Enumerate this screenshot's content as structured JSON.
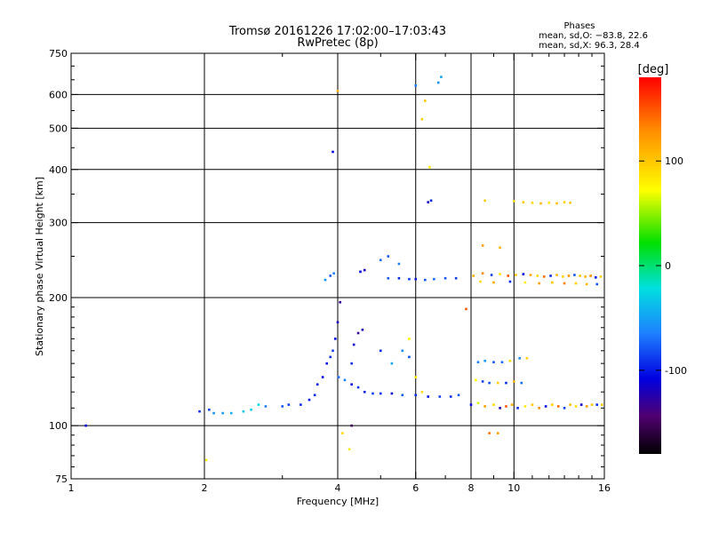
{
  "header": {
    "title_line1": "Tromsø 20161226 17:02:00–17:03:43",
    "title_line2": "RwPretec (8p)",
    "phases_heading": "Phases",
    "phases_o": "mean, sd,O: −83.8, 22.6",
    "phases_x": "mean, sd,X:  96.3, 28.4"
  },
  "colorbar": {
    "unit_label": "[deg]",
    "ticks": [
      {
        "value": 100,
        "label": "100"
      },
      {
        "value": 0,
        "label": "0"
      },
      {
        "value": -100,
        "label": "-100"
      }
    ],
    "range": [
      -180,
      180
    ]
  },
  "chart_data": {
    "type": "scatter",
    "xlabel": "Frequency [MHz]",
    "ylabel": "Stationary phase Virtual Height [km]",
    "x_scale": "log",
    "y_scale": "log",
    "xlim": [
      1,
      16
    ],
    "ylim": [
      75,
      750
    ],
    "grid": true,
    "x_ticks": [
      {
        "value": 1,
        "label": "1"
      },
      {
        "value": 2,
        "label": "2"
      },
      {
        "value": 4,
        "label": "4"
      },
      {
        "value": 6,
        "label": "6"
      },
      {
        "value": 8,
        "label": "8"
      },
      {
        "value": 10,
        "label": "10"
      },
      {
        "value": 16,
        "label": "16"
      }
    ],
    "y_ticks": [
      {
        "value": 75,
        "label": "75"
      },
      {
        "value": 100,
        "label": "100"
      },
      {
        "value": 200,
        "label": "200"
      },
      {
        "value": 300,
        "label": "300"
      },
      {
        "value": 400,
        "label": "400"
      },
      {
        "value": 500,
        "label": "500"
      },
      {
        "value": 600,
        "label": "600"
      },
      {
        "value": 750,
        "label": "750"
      }
    ],
    "x_grid": [
      2,
      4,
      6,
      8,
      10
    ],
    "y_grid": [
      100,
      200,
      300,
      400,
      500,
      600
    ],
    "series": [
      {
        "points": [
          [
            1.08,
            100,
            -110
          ],
          [
            1.95,
            108,
            -100
          ],
          [
            2.05,
            109,
            -95
          ],
          [
            2.1,
            107,
            -70
          ],
          [
            2.2,
            107,
            -65
          ],
          [
            2.3,
            107,
            -55
          ],
          [
            2.45,
            108,
            -45
          ],
          [
            2.55,
            109,
            -40
          ],
          [
            2.65,
            112,
            -35
          ],
          [
            2.75,
            111,
            -80
          ],
          [
            3.0,
            111,
            -90
          ],
          [
            3.1,
            112,
            -95
          ],
          [
            3.3,
            112,
            -100
          ],
          [
            3.45,
            115,
            -105
          ],
          [
            3.55,
            118,
            -100
          ],
          [
            3.6,
            125,
            -105
          ],
          [
            3.7,
            130,
            -110
          ],
          [
            3.78,
            140,
            -108
          ],
          [
            3.85,
            145,
            -100
          ],
          [
            3.9,
            150,
            -95
          ],
          [
            3.95,
            160,
            -110
          ],
          [
            4.0,
            175,
            -120
          ],
          [
            4.05,
            195,
            -130
          ],
          [
            4.02,
            130,
            -85
          ],
          [
            4.15,
            128,
            -80
          ],
          [
            4.3,
            125,
            -110
          ],
          [
            4.45,
            123,
            -100
          ],
          [
            4.6,
            120,
            -105
          ],
          [
            4.8,
            119,
            -95
          ],
          [
            5.0,
            119,
            -100
          ],
          [
            5.3,
            119,
            -110
          ],
          [
            5.6,
            118,
            -90
          ],
          [
            6.0,
            118,
            -100
          ],
          [
            6.4,
            117,
            -105
          ],
          [
            6.8,
            117,
            -95
          ],
          [
            7.2,
            117,
            -100
          ],
          [
            7.5,
            118,
            -90
          ],
          [
            4.35,
            155,
            -115
          ],
          [
            4.45,
            165,
            -130
          ],
          [
            4.55,
            168,
            -120
          ],
          [
            4.3,
            140,
            -100
          ],
          [
            5.0,
            150,
            -100
          ],
          [
            5.3,
            140,
            -60
          ],
          [
            5.6,
            150,
            -75
          ],
          [
            5.8,
            145,
            -90
          ],
          [
            3.75,
            220,
            -70
          ],
          [
            3.85,
            225,
            -90
          ],
          [
            3.92,
            228,
            -80
          ],
          [
            4.5,
            230,
            -110
          ],
          [
            4.6,
            232,
            -120
          ],
          [
            5.0,
            245,
            -85
          ],
          [
            5.2,
            250,
            -90
          ],
          [
            5.5,
            240,
            -80
          ],
          [
            5.2,
            222,
            -90
          ],
          [
            5.5,
            222,
            -100
          ],
          [
            5.8,
            221,
            -95
          ],
          [
            6.0,
            221,
            -105
          ],
          [
            6.3,
            220,
            -90
          ],
          [
            6.6,
            221,
            -85
          ],
          [
            7.0,
            222,
            -90
          ],
          [
            7.4,
            222,
            -95
          ],
          [
            3.9,
            440,
            -110
          ],
          [
            6.4,
            335,
            -115
          ],
          [
            6.5,
            338,
            -100
          ],
          [
            6.0,
            630,
            -80
          ],
          [
            6.75,
            640,
            -70
          ],
          [
            6.85,
            660,
            -60
          ],
          [
            5.8,
            160,
            70
          ],
          [
            6.0,
            130,
            80
          ],
          [
            6.2,
            120,
            90
          ],
          [
            4.3,
            100,
            -150
          ],
          [
            4.25,
            88,
            80
          ],
          [
            4.1,
            96,
            90
          ],
          [
            2.02,
            83,
            75
          ],
          [
            6.2,
            525,
            95
          ],
          [
            6.3,
            580,
            100
          ],
          [
            6.45,
            405,
            80
          ],
          [
            4.0,
            612,
            110
          ]
        ]
      },
      {
        "points": [
          [
            8.0,
            112,
            -110
          ],
          [
            8.3,
            113,
            60
          ],
          [
            8.6,
            111,
            120
          ],
          [
            9.0,
            112,
            90
          ],
          [
            9.3,
            110,
            -120
          ],
          [
            9.6,
            111,
            150
          ],
          [
            9.9,
            112,
            110
          ],
          [
            10.2,
            110,
            -100
          ],
          [
            10.6,
            111,
            80
          ],
          [
            11.0,
            112,
            100
          ],
          [
            11.4,
            110,
            130
          ],
          [
            11.8,
            111,
            -110
          ],
          [
            12.2,
            112,
            95
          ],
          [
            12.6,
            111,
            140
          ],
          [
            13.0,
            110,
            -95
          ],
          [
            13.4,
            112,
            105
          ],
          [
            13.8,
            111,
            85
          ],
          [
            14.2,
            112,
            -115
          ],
          [
            14.6,
            111,
            120
          ],
          [
            15.0,
            112,
            100
          ],
          [
            15.4,
            112,
            -100
          ],
          [
            15.8,
            112,
            95
          ],
          [
            8.2,
            128,
            70
          ],
          [
            8.5,
            127,
            -95
          ],
          [
            8.8,
            126,
            -90
          ],
          [
            9.2,
            126,
            95
          ],
          [
            9.6,
            126,
            -100
          ],
          [
            10.0,
            127,
            110
          ],
          [
            10.4,
            126,
            -85
          ],
          [
            8.3,
            141,
            -80
          ],
          [
            8.6,
            142,
            -70
          ],
          [
            9.0,
            141,
            -90
          ],
          [
            9.4,
            141,
            -85
          ],
          [
            9.8,
            142,
            90
          ],
          [
            10.3,
            144,
            -75
          ],
          [
            10.7,
            144,
            95
          ],
          [
            8.1,
            225,
            110
          ],
          [
            8.5,
            228,
            130
          ],
          [
            8.9,
            226,
            -95
          ],
          [
            9.3,
            227,
            85
          ],
          [
            9.7,
            225,
            150
          ],
          [
            10.1,
            226,
            100
          ],
          [
            10.5,
            227,
            -110
          ],
          [
            10.9,
            226,
            120
          ],
          [
            11.3,
            225,
            90
          ],
          [
            11.7,
            224,
            140
          ],
          [
            12.1,
            225,
            -100
          ],
          [
            12.5,
            226,
            110
          ],
          [
            12.9,
            224,
            95
          ],
          [
            13.3,
            225,
            125
          ],
          [
            13.7,
            226,
            -90
          ],
          [
            14.1,
            225,
            100
          ],
          [
            14.5,
            224,
            110
          ],
          [
            14.9,
            225,
            130
          ],
          [
            15.3,
            223,
            -105
          ],
          [
            15.7,
            224,
            95
          ],
          [
            8.4,
            218,
            90
          ],
          [
            9.0,
            217,
            115
          ],
          [
            9.8,
            218,
            -100
          ],
          [
            10.6,
            217,
            80
          ],
          [
            11.4,
            216,
            120
          ],
          [
            12.2,
            217,
            100
          ],
          [
            13.0,
            216,
            135
          ],
          [
            13.8,
            216,
            95
          ],
          [
            14.6,
            215,
            110
          ],
          [
            15.4,
            215,
            -90
          ],
          [
            10.5,
            335,
            100
          ],
          [
            11.0,
            334,
            90
          ],
          [
            11.5,
            333,
            110
          ],
          [
            12.0,
            334,
            85
          ],
          [
            12.5,
            333,
            105
          ],
          [
            13.0,
            335,
            95
          ],
          [
            13.4,
            334,
            100
          ],
          [
            10.0,
            337,
            85
          ],
          [
            8.6,
            338,
            95
          ],
          [
            8.5,
            265,
            120
          ],
          [
            9.3,
            262,
            110
          ],
          [
            7.8,
            188,
            150
          ],
          [
            8.8,
            96,
            140
          ],
          [
            9.2,
            96,
            120
          ]
        ]
      }
    ]
  }
}
